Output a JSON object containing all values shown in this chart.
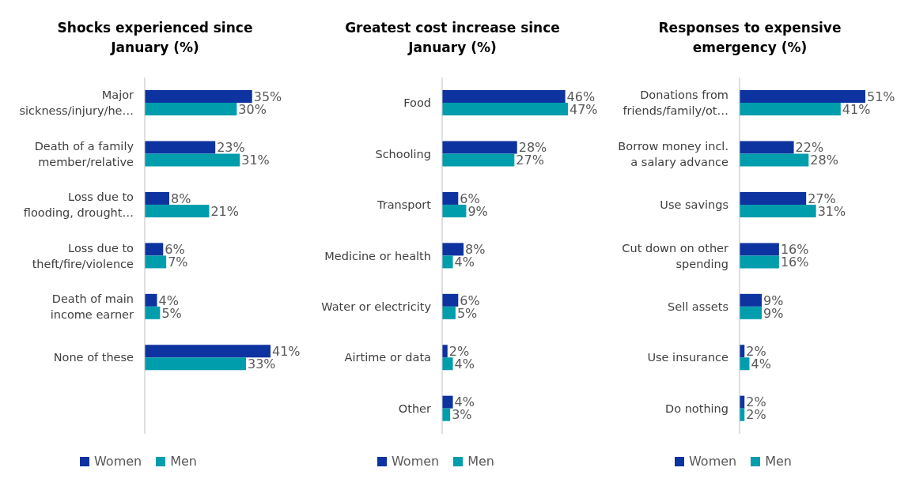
{
  "chart_data": [
    {
      "type": "bar",
      "orientation": "horizontal",
      "title": "Shocks experienced since January (%)",
      "categories": [
        "Major sickness/injury/he…",
        "Death of a family member/relative",
        "Loss due to flooding, drought…",
        "Loss due to theft/fire/violence",
        "Death of main income earner",
        "None of these",
        null
      ],
      "series": [
        {
          "name": "Women",
          "color": "#0d33a0",
          "values": [
            35,
            23,
            8,
            6,
            4,
            41,
            null
          ],
          "value_labels": [
            "35%",
            "23%",
            "8%",
            "6%",
            "4%",
            "41%",
            null
          ]
        },
        {
          "name": "Men",
          "color": "#009dad",
          "values": [
            30,
            31,
            21,
            7,
            5,
            33,
            null
          ],
          "value_labels": [
            "30%",
            "31%",
            "21%",
            "7%",
            "5%",
            "33%",
            null
          ]
        }
      ],
      "legend": "bottom",
      "tick_labels": "y",
      "grid": false
    },
    {
      "type": "bar",
      "orientation": "horizontal",
      "title": "Greatest cost increase since January (%)",
      "categories": [
        "Food",
        "Schooling",
        "Transport",
        "Medicine or health",
        "Water or electricity",
        "Airtime or data",
        "Other"
      ],
      "series": [
        {
          "name": "Women",
          "color": "#0d33a0",
          "values": [
            46,
            28,
            6,
            8,
            6,
            2,
            4
          ],
          "value_labels": [
            "46%",
            "28%",
            "6%",
            "8%",
            "6%",
            "2%",
            "4%"
          ]
        },
        {
          "name": "Men",
          "color": "#009dad",
          "values": [
            47,
            27,
            9,
            4,
            5,
            4,
            3
          ],
          "value_labels": [
            "47%",
            "27%",
            "9%",
            "4%",
            "5%",
            "4%",
            "3%"
          ]
        }
      ],
      "legend": "bottom",
      "tick_labels": "y",
      "grid": false
    },
    {
      "type": "bar",
      "orientation": "horizontal",
      "title": "Responses to expensive emergency (%)",
      "categories": [
        "Donations from friends/family/ot…",
        "Borrow money incl. a salary advance",
        "Use savings",
        "Cut down on other spending",
        "Sell assets",
        "Use insurance",
        "Do nothing"
      ],
      "series": [
        {
          "name": "Women",
          "color": "#0d33a0",
          "values": [
            51,
            22,
            27,
            16,
            9,
            2,
            2
          ],
          "value_labels": [
            "51%",
            "22%",
            "27%",
            "16%",
            "9%",
            "2%",
            "2%"
          ]
        },
        {
          "name": "Men",
          "color": "#009dad",
          "values": [
            41,
            28,
            31,
            16,
            9,
            4,
            2
          ],
          "value_labels": [
            "41%",
            "28%",
            "31%",
            "16%",
            "9%",
            "4%",
            "2%"
          ]
        }
      ],
      "legend": "bottom",
      "tick_labels": "y",
      "grid": false
    }
  ]
}
